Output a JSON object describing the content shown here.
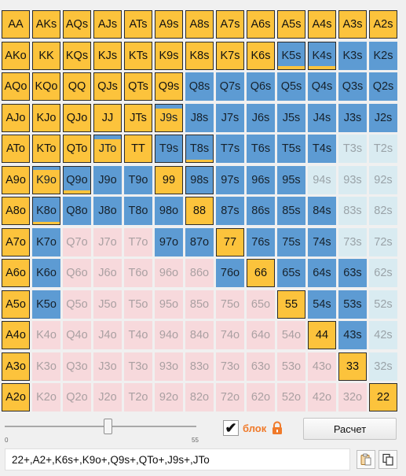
{
  "grid": {
    "rows": [
      [
        {
          "l": "AA",
          "c": "y"
        },
        {
          "l": "AKs",
          "c": "y"
        },
        {
          "l": "AQs",
          "c": "y"
        },
        {
          "l": "AJs",
          "c": "y"
        },
        {
          "l": "ATs",
          "c": "y"
        },
        {
          "l": "A9s",
          "c": "y"
        },
        {
          "l": "A8s",
          "c": "y"
        },
        {
          "l": "A7s",
          "c": "y"
        },
        {
          "l": "A6s",
          "c": "y"
        },
        {
          "l": "A5s",
          "c": "y"
        },
        {
          "l": "A4s",
          "c": "y"
        },
        {
          "l": "A3s",
          "c": "y"
        },
        {
          "l": "A2s",
          "c": "y"
        }
      ],
      [
        {
          "l": "AKo",
          "c": "y"
        },
        {
          "l": "KK",
          "c": "y"
        },
        {
          "l": "KQs",
          "c": "y"
        },
        {
          "l": "KJs",
          "c": "y"
        },
        {
          "l": "KTs",
          "c": "y"
        },
        {
          "l": "K9s",
          "c": "y"
        },
        {
          "l": "K8s",
          "c": "y"
        },
        {
          "l": "K7s",
          "c": "y"
        },
        {
          "l": "K6s",
          "c": "y"
        },
        {
          "l": "K5s",
          "c": "b",
          "f": 0.1,
          "fp": "bottom",
          "bd": true
        },
        {
          "l": "K4s",
          "c": "b",
          "f": 0.1,
          "fp": "bottom",
          "bd": true
        },
        {
          "l": "K3s",
          "c": "b"
        },
        {
          "l": "K2s",
          "c": "b"
        }
      ],
      [
        {
          "l": "AQo",
          "c": "y"
        },
        {
          "l": "KQo",
          "c": "y"
        },
        {
          "l": "QQ",
          "c": "y"
        },
        {
          "l": "QJs",
          "c": "y"
        },
        {
          "l": "QTs",
          "c": "y"
        },
        {
          "l": "Q9s",
          "c": "y"
        },
        {
          "l": "Q8s",
          "c": "b"
        },
        {
          "l": "Q7s",
          "c": "b"
        },
        {
          "l": "Q6s",
          "c": "b"
        },
        {
          "l": "Q5s",
          "c": "b"
        },
        {
          "l": "Q4s",
          "c": "b"
        },
        {
          "l": "Q3s",
          "c": "b"
        },
        {
          "l": "Q2s",
          "c": "b"
        }
      ],
      [
        {
          "l": "AJo",
          "c": "y"
        },
        {
          "l": "KJo",
          "c": "y"
        },
        {
          "l": "QJo",
          "c": "y"
        },
        {
          "l": "JJ",
          "c": "y"
        },
        {
          "l": "JTs",
          "c": "y"
        },
        {
          "l": "J9s",
          "c": "b",
          "f": 0.85,
          "fp": "bottom",
          "bd": true
        },
        {
          "l": "J8s",
          "c": "b"
        },
        {
          "l": "J7s",
          "c": "b"
        },
        {
          "l": "J6s",
          "c": "b"
        },
        {
          "l": "J5s",
          "c": "b"
        },
        {
          "l": "J4s",
          "c": "b"
        },
        {
          "l": "J3s",
          "c": "b"
        },
        {
          "l": "J2s",
          "c": "b"
        }
      ],
      [
        {
          "l": "ATo",
          "c": "y"
        },
        {
          "l": "KTo",
          "c": "y"
        },
        {
          "l": "QTo",
          "c": "y"
        },
        {
          "l": "JTo",
          "c": "b",
          "f": 0.85,
          "fp": "bottom",
          "bd": true
        },
        {
          "l": "TT",
          "c": "y"
        },
        {
          "l": "T9s",
          "c": "b",
          "bd": true
        },
        {
          "l": "T8s",
          "c": "b",
          "f": 0.1,
          "fp": "bottom",
          "bd": true
        },
        {
          "l": "T7s",
          "c": "b"
        },
        {
          "l": "T6s",
          "c": "b"
        },
        {
          "l": "T5s",
          "c": "b"
        },
        {
          "l": "T4s",
          "c": "b"
        },
        {
          "l": "T3s",
          "c": "lb"
        },
        {
          "l": "T2s",
          "c": "lb"
        }
      ],
      [
        {
          "l": "A9o",
          "c": "y"
        },
        {
          "l": "K9o",
          "c": "b",
          "f": 0.88,
          "fp": "bottom",
          "bd": true
        },
        {
          "l": "Q9o",
          "c": "b",
          "f": 0.1,
          "fp": "bottom",
          "bd": true
        },
        {
          "l": "J9o",
          "c": "b"
        },
        {
          "l": "T9o",
          "c": "b"
        },
        {
          "l": "99",
          "c": "y"
        },
        {
          "l": "98s",
          "c": "b",
          "bd": true
        },
        {
          "l": "97s",
          "c": "b"
        },
        {
          "l": "96s",
          "c": "b"
        },
        {
          "l": "95s",
          "c": "b"
        },
        {
          "l": "94s",
          "c": "lb"
        },
        {
          "l": "93s",
          "c": "lb"
        },
        {
          "l": "92s",
          "c": "lb"
        }
      ],
      [
        {
          "l": "A8o",
          "c": "y"
        },
        {
          "l": "K8o",
          "c": "b",
          "f": 0.1,
          "fp": "bottom",
          "bd": true
        },
        {
          "l": "Q8o",
          "c": "b"
        },
        {
          "l": "J8o",
          "c": "b"
        },
        {
          "l": "T8o",
          "c": "b"
        },
        {
          "l": "98o",
          "c": "b"
        },
        {
          "l": "88",
          "c": "y"
        },
        {
          "l": "87s",
          "c": "b"
        },
        {
          "l": "86s",
          "c": "b"
        },
        {
          "l": "85s",
          "c": "b"
        },
        {
          "l": "84s",
          "c": "b"
        },
        {
          "l": "83s",
          "c": "lb"
        },
        {
          "l": "82s",
          "c": "lb"
        }
      ],
      [
        {
          "l": "A7o",
          "c": "y"
        },
        {
          "l": "K7o",
          "c": "b"
        },
        {
          "l": "Q7o",
          "c": "p"
        },
        {
          "l": "J7o",
          "c": "p"
        },
        {
          "l": "T7o",
          "c": "p"
        },
        {
          "l": "97o",
          "c": "b"
        },
        {
          "l": "87o",
          "c": "b"
        },
        {
          "l": "77",
          "c": "y"
        },
        {
          "l": "76s",
          "c": "b"
        },
        {
          "l": "75s",
          "c": "b"
        },
        {
          "l": "74s",
          "c": "b"
        },
        {
          "l": "73s",
          "c": "lb"
        },
        {
          "l": "72s",
          "c": "lb"
        }
      ],
      [
        {
          "l": "A6o",
          "c": "y"
        },
        {
          "l": "K6o",
          "c": "b"
        },
        {
          "l": "Q6o",
          "c": "p"
        },
        {
          "l": "J6o",
          "c": "p"
        },
        {
          "l": "T6o",
          "c": "p"
        },
        {
          "l": "96o",
          "c": "p"
        },
        {
          "l": "86o",
          "c": "p"
        },
        {
          "l": "76o",
          "c": "b"
        },
        {
          "l": "66",
          "c": "y"
        },
        {
          "l": "65s",
          "c": "b"
        },
        {
          "l": "64s",
          "c": "b"
        },
        {
          "l": "63s",
          "c": "b"
        },
        {
          "l": "62s",
          "c": "lb"
        }
      ],
      [
        {
          "l": "A5o",
          "c": "y"
        },
        {
          "l": "K5o",
          "c": "b"
        },
        {
          "l": "Q5o",
          "c": "p"
        },
        {
          "l": "J5o",
          "c": "p"
        },
        {
          "l": "T5o",
          "c": "p"
        },
        {
          "l": "95o",
          "c": "p"
        },
        {
          "l": "85o",
          "c": "p"
        },
        {
          "l": "75o",
          "c": "p"
        },
        {
          "l": "65o",
          "c": "p"
        },
        {
          "l": "55",
          "c": "y"
        },
        {
          "l": "54s",
          "c": "b"
        },
        {
          "l": "53s",
          "c": "b"
        },
        {
          "l": "52s",
          "c": "lb"
        }
      ],
      [
        {
          "l": "A4o",
          "c": "y"
        },
        {
          "l": "K4o",
          "c": "p"
        },
        {
          "l": "Q4o",
          "c": "p"
        },
        {
          "l": "J4o",
          "c": "p"
        },
        {
          "l": "T4o",
          "c": "p"
        },
        {
          "l": "94o",
          "c": "p"
        },
        {
          "l": "84o",
          "c": "p"
        },
        {
          "l": "74o",
          "c": "p"
        },
        {
          "l": "64o",
          "c": "p"
        },
        {
          "l": "54o",
          "c": "p"
        },
        {
          "l": "44",
          "c": "y"
        },
        {
          "l": "43s",
          "c": "b"
        },
        {
          "l": "42s",
          "c": "lb"
        }
      ],
      [
        {
          "l": "A3o",
          "c": "y"
        },
        {
          "l": "K3o",
          "c": "p"
        },
        {
          "l": "Q3o",
          "c": "p"
        },
        {
          "l": "J3o",
          "c": "p"
        },
        {
          "l": "T3o",
          "c": "p"
        },
        {
          "l": "93o",
          "c": "p"
        },
        {
          "l": "83o",
          "c": "p"
        },
        {
          "l": "73o",
          "c": "p"
        },
        {
          "l": "63o",
          "c": "p"
        },
        {
          "l": "53o",
          "c": "p"
        },
        {
          "l": "43o",
          "c": "p"
        },
        {
          "l": "33",
          "c": "y"
        },
        {
          "l": "32s",
          "c": "lb"
        }
      ],
      [
        {
          "l": "A2o",
          "c": "y"
        },
        {
          "l": "K2o",
          "c": "p"
        },
        {
          "l": "Q2o",
          "c": "p"
        },
        {
          "l": "J2o",
          "c": "p"
        },
        {
          "l": "T2o",
          "c": "p"
        },
        {
          "l": "92o",
          "c": "p"
        },
        {
          "l": "82o",
          "c": "p"
        },
        {
          "l": "72o",
          "c": "p"
        },
        {
          "l": "62o",
          "c": "p"
        },
        {
          "l": "52o",
          "c": "p"
        },
        {
          "l": "42o",
          "c": "p"
        },
        {
          "l": "32o",
          "c": "p"
        },
        {
          "l": "22",
          "c": "y"
        }
      ]
    ]
  },
  "slider": {
    "min_label": "0",
    "max_label": "55"
  },
  "lock": {
    "checked_glyph": "✔",
    "label": "блок"
  },
  "calc_button": {
    "label": "Расчет"
  },
  "range_text": "22+,A2+,K6s+,K9o+,Q9s+,QTo+,J9s+,JTo",
  "icons": {
    "lock": "lock-icon",
    "paste": "paste-icon",
    "copy": "copy-icon"
  },
  "colors": {
    "selected": "#fcc33c",
    "blue": "#5d9bd3",
    "light_blue": "#d9ebf1",
    "pink": "#f7d9dc",
    "lock_label": "#f07a2a"
  }
}
